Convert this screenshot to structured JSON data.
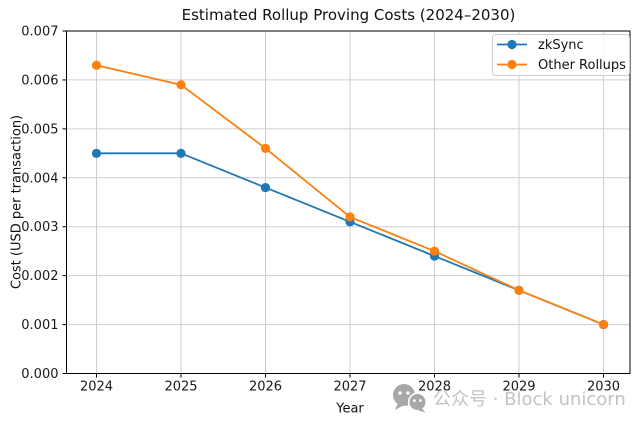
{
  "chart_data": {
    "type": "line",
    "title": "Estimated Rollup Proving Costs (2024–2030)",
    "xlabel": "Year",
    "ylabel": "Cost (USD per transaction)",
    "categories": [
      "2024",
      "2025",
      "2026",
      "2027",
      "2028",
      "2029",
      "2030"
    ],
    "series": [
      {
        "name": "zkSync",
        "color": "#1f77b4",
        "marker": "circle",
        "values": [
          0.0045,
          0.0045,
          0.0038,
          0.0031,
          0.0024,
          0.0017,
          0.001
        ]
      },
      {
        "name": "Other Rollups",
        "color": "#ff7f0e",
        "marker": "circle",
        "values": [
          0.0063,
          0.0059,
          0.0046,
          0.0032,
          0.0025,
          0.0017,
          0.001
        ]
      }
    ],
    "ylim": [
      0,
      0.007
    ],
    "ytick_labels": [
      "0.000",
      "0.001",
      "0.002",
      "0.003",
      "0.004",
      "0.005",
      "0.006",
      "0.007"
    ],
    "grid": true,
    "legend": {
      "position": "upper right",
      "entries": [
        "zkSync",
        "Other Rollups"
      ]
    }
  },
  "watermark": {
    "icon": "wechat-icon",
    "text": "公众号 · Block unicorn"
  },
  "colors": {
    "grid": "#cfcfcf",
    "spine": "#000000",
    "tick_text": "#1a1a1a",
    "label_text": "#111111",
    "legend_border": "#cccccc",
    "watermark_text": "#c3c3c3",
    "watermark_icon": "#a8a8a8"
  }
}
